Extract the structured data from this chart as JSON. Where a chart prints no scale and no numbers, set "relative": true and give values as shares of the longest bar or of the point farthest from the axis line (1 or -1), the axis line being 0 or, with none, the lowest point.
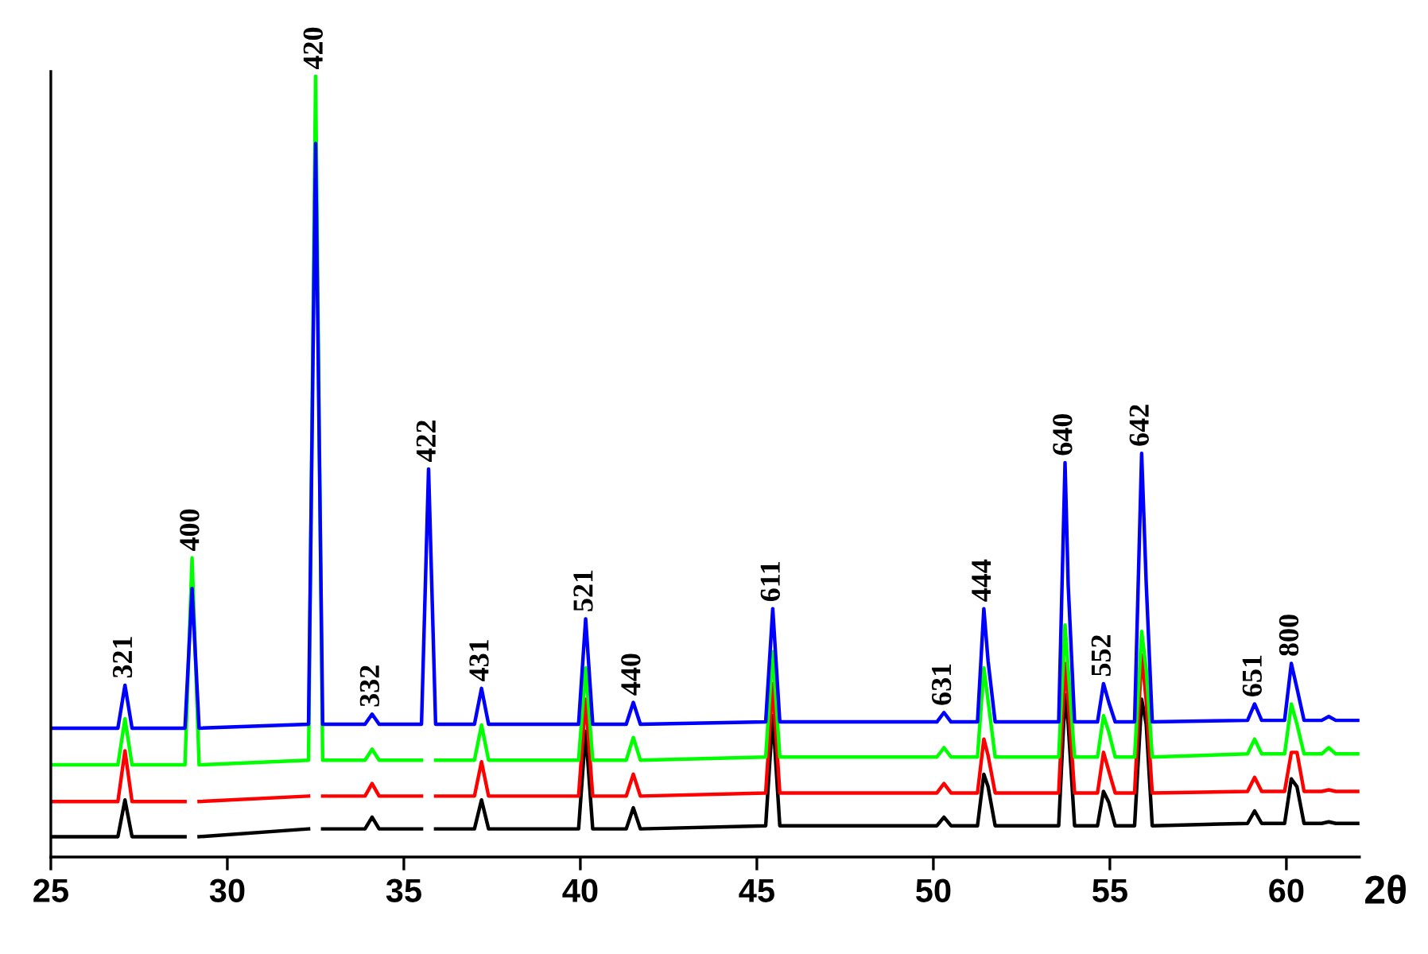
{
  "chart_data": {
    "type": "line",
    "relative": true,
    "xlabel": "2θ",
    "xlim": [
      25,
      62.07
    ],
    "xticks": [
      25,
      30,
      35,
      40,
      45,
      50,
      55,
      60
    ],
    "grid": false,
    "legend": false,
    "marker": "none",
    "line_style": "solid",
    "x": [
      25.0,
      26.9,
      27.1,
      27.3,
      28.8,
      29.0,
      29.2,
      32.3,
      32.5,
      32.7,
      33.9,
      34.1,
      34.3,
      35.5,
      35.7,
      35.9,
      37.0,
      37.2,
      37.4,
      39.95,
      40.15,
      40.35,
      41.3,
      41.5,
      41.7,
      45.25,
      45.45,
      45.65,
      50.1,
      50.3,
      50.5,
      51.25,
      51.43,
      51.55,
      51.75,
      53.55,
      53.73,
      53.82,
      54.0,
      54.65,
      54.82,
      54.97,
      55.15,
      55.7,
      55.9,
      56.03,
      56.2,
      58.9,
      59.1,
      59.3,
      59.95,
      60.14,
      60.3,
      60.5,
      61.0,
      61.2,
      61.4,
      62.07
    ],
    "series": [
      {
        "color": "#000000",
        "values": [
          0.026,
          0.026,
          0.073,
          0.026,
          0.026,
          null,
          0.026,
          0.036,
          null,
          0.036,
          0.036,
          0.051,
          0.036,
          0.036,
          null,
          0.036,
          0.036,
          0.073,
          0.036,
          0.036,
          0.161,
          0.036,
          0.036,
          0.063,
          0.036,
          0.04,
          0.181,
          0.04,
          0.04,
          0.051,
          0.04,
          0.04,
          0.106,
          0.09,
          0.04,
          0.04,
          0.208,
          0.17,
          0.04,
          0.04,
          0.084,
          0.07,
          0.04,
          0.04,
          0.202,
          0.17,
          0.04,
          0.043,
          0.059,
          0.043,
          0.043,
          0.1,
          0.09,
          0.043,
          0.043,
          0.045,
          0.043,
          0.043
        ]
      },
      {
        "color": "#ff0000",
        "values": [
          0.071,
          0.071,
          0.136,
          0.071,
          0.071,
          null,
          0.071,
          0.078,
          null,
          0.078,
          0.078,
          0.094,
          0.078,
          0.078,
          null,
          0.078,
          0.078,
          0.122,
          0.078,
          0.078,
          0.202,
          0.078,
          0.078,
          0.106,
          0.078,
          0.082,
          0.222,
          0.082,
          0.082,
          0.094,
          0.082,
          0.082,
          0.151,
          0.13,
          0.082,
          0.082,
          0.248,
          0.2,
          0.082,
          0.082,
          0.134,
          0.11,
          0.082,
          0.082,
          0.259,
          0.2,
          0.082,
          0.084,
          0.102,
          0.084,
          0.084,
          0.134,
          0.134,
          0.084,
          0.084,
          0.086,
          0.084,
          0.084
        ]
      },
      {
        "color": "#00ff00",
        "values": [
          0.118,
          0.118,
          0.177,
          0.118,
          0.118,
          0.383,
          0.118,
          0.124,
          1.0,
          0.124,
          0.124,
          0.138,
          0.124,
          0.124,
          null,
          0.124,
          0.124,
          0.169,
          0.124,
          0.124,
          0.242,
          0.124,
          0.124,
          0.153,
          0.124,
          0.128,
          0.263,
          0.128,
          0.128,
          0.14,
          0.128,
          0.128,
          0.242,
          0.2,
          0.128,
          0.128,
          0.297,
          0.24,
          0.128,
          0.128,
          0.181,
          0.16,
          0.128,
          0.128,
          0.289,
          0.24,
          0.128,
          0.132,
          0.151,
          0.132,
          0.132,
          0.196,
          0.17,
          0.132,
          0.132,
          0.14,
          0.132,
          0.132
        ]
      },
      {
        "color": "#0000ff",
        "values": [
          0.165,
          0.165,
          0.22,
          0.165,
          0.165,
          0.344,
          0.165,
          0.17,
          0.914,
          0.17,
          0.17,
          0.183,
          0.17,
          0.17,
          0.497,
          0.17,
          0.17,
          0.216,
          0.17,
          0.17,
          0.305,
          0.17,
          0.17,
          0.198,
          0.17,
          0.173,
          0.318,
          0.173,
          0.173,
          0.185,
          0.173,
          0.173,
          0.318,
          0.251,
          0.173,
          0.173,
          0.505,
          0.348,
          0.173,
          0.173,
          0.222,
          0.198,
          0.173,
          0.173,
          0.517,
          0.35,
          0.173,
          0.175,
          0.196,
          0.175,
          0.175,
          0.248,
          0.216,
          0.175,
          0.175,
          0.18,
          0.175,
          0.175
        ]
      }
    ],
    "annotations": [
      {
        "text": "321",
        "x": 27.1,
        "y": 0.22
      },
      {
        "text": "400",
        "x": 29.0,
        "y": 0.383
      },
      {
        "text": "420",
        "x": 32.5,
        "y": 1.0
      },
      {
        "text": "332",
        "x": 34.1,
        "y": 0.183
      },
      {
        "text": "422",
        "x": 35.7,
        "y": 0.497
      },
      {
        "text": "431",
        "x": 37.2,
        "y": 0.216
      },
      {
        "text": "521",
        "x": 40.15,
        "y": 0.305
      },
      {
        "text": "440",
        "x": 41.5,
        "y": 0.198
      },
      {
        "text": "611",
        "x": 45.45,
        "y": 0.318
      },
      {
        "text": "631",
        "x": 50.3,
        "y": 0.185
      },
      {
        "text": "444",
        "x": 51.43,
        "y": 0.318
      },
      {
        "text": "640",
        "x": 53.73,
        "y": 0.505
      },
      {
        "text": "552",
        "x": 54.82,
        "y": 0.222
      },
      {
        "text": "642",
        "x": 55.9,
        "y": 0.517
      },
      {
        "text": "651",
        "x": 59.1,
        "y": 0.196
      },
      {
        "text": "800",
        "x": 60.14,
        "y": 0.248
      }
    ]
  }
}
